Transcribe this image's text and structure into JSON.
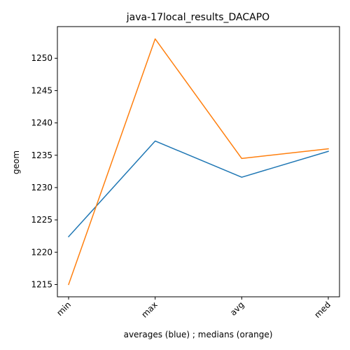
{
  "chart_data": {
    "type": "line",
    "title": "java-17local_results_DACAPO",
    "xlabel": "averages (blue) ; medians (orange)",
    "ylabel": "geom",
    "categories": [
      "min",
      "max",
      "avg",
      "med"
    ],
    "series": [
      {
        "values": [
          1222.4,
          1237.2,
          1231.6,
          1235.6
        ],
        "color": "#1f77b4"
      },
      {
        "values": [
          1215.0,
          1253.0,
          1234.5,
          1236.0
        ],
        "color": "#ff7f0e"
      }
    ],
    "ylim": [
      1213.1,
      1254.9
    ],
    "yticks": [
      1215,
      1220,
      1225,
      1230,
      1235,
      1240,
      1245,
      1250
    ],
    "grid": false,
    "legend": "none"
  }
}
